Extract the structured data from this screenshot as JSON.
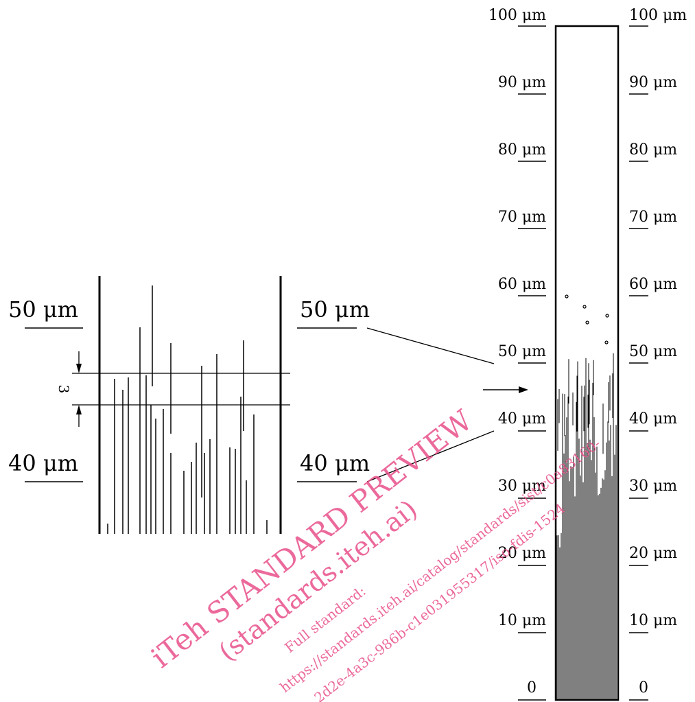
{
  "scale_labels": {
    "left": [
      "100 μm",
      "90 μm",
      "80 μm",
      "70 μm",
      "60 μm",
      "50 μm",
      "40 μm",
      "30 μm",
      "20 μm",
      "10 μm",
      "0"
    ],
    "right": [
      "100 μm",
      "90 μm",
      "80 μm",
      "70 μm",
      "60 μm",
      "50 μm",
      "40 μm",
      "30 μm",
      "20 μm",
      "10 μm",
      "0"
    ]
  },
  "detail": {
    "upper_left_label": "50 μm",
    "upper_right_label": "50 μm",
    "lower_left_label": "40 μm",
    "lower_right_label": "40 μm",
    "dimension_label": "3"
  },
  "watermark": {
    "line1": "iTeh STANDARD PREVIEW",
    "line2": "(standards.iteh.ai)",
    "line3": "Full standard:",
    "line4": "https://standards.iteh.ai/catalog/standards/sist/c0a83160-",
    "line5": "2d2e-4a3c-986b-c1e031955317/iso-fdis-1524"
  },
  "colors": {
    "ink": "#000000",
    "watermark": "#e8508a"
  }
}
